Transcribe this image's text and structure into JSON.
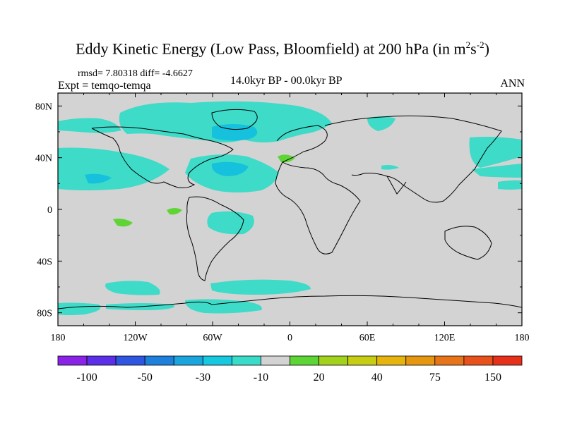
{
  "title_main": "Eddy Kinetic Energy (Low Pass, Bloomfield) at 200 hPa (in m",
  "title_sup1": "2",
  "title_mid": "s",
  "title_sup2": "-2",
  "title_end": ")",
  "stats": "rmsd= 7.80318 diff= -4.6627",
  "experiment": "Expt = temqo-temqa",
  "period": "14.0kyr BP - 00.0kyr BP",
  "season": "ANN",
  "map": {
    "lon_ticks": [
      "180",
      "120W",
      "60W",
      "0",
      "60E",
      "120E",
      "180"
    ],
    "lat_ticks": [
      "80N",
      "40N",
      "0",
      "40S",
      "80S"
    ],
    "colors": {
      "background": "#d3d3d3",
      "neg10": "#3ddbc8",
      "neg30": "#15c1dc",
      "pos20": "#5fd435"
    }
  },
  "colorbar": {
    "colors": [
      "#8b22e8",
      "#5b2ee8",
      "#2f56e0",
      "#1e80dd",
      "#1aa5df",
      "#16c8e0",
      "#38dcc8",
      "#d3d3d3",
      "#5cd535",
      "#a3d21c",
      "#c6cd12",
      "#e6b40c",
      "#e79610",
      "#e8741a",
      "#e8501c",
      "#e6301a"
    ],
    "labels": [
      "-100",
      "-50",
      "-30",
      "-10",
      "20",
      "40",
      "75",
      "150"
    ]
  }
}
